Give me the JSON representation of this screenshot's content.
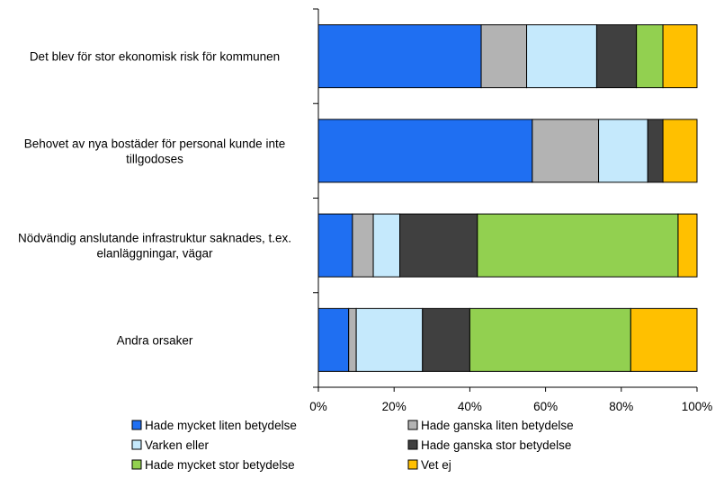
{
  "chart_data": {
    "type": "bar",
    "orientation": "horizontal",
    "stacked": true,
    "percent": true,
    "categories": [
      "Det blev för stor ekonomisk risk för kommunen",
      "Behovet av nya bostäder för personal kunde inte tillgodoses",
      "Nödvändig anslutande infrastruktur saknades, t.ex. elanläggningar, vägar",
      "Andra orsaker"
    ],
    "category_lines": [
      [
        "Det blev för stor ekonomisk risk för kommunen"
      ],
      [
        "Behovet av nya bostäder för personal kunde inte",
        "tillgodoses"
      ],
      [
        "Nödvändig anslutande infrastruktur saknades, t.ex.",
        "elanläggningar, vägar"
      ],
      [
        "Andra orsaker"
      ]
    ],
    "series": [
      {
        "name": "Hade mycket liten betydelse",
        "color": "#1f6ff2",
        "values": [
          43,
          56.5,
          9,
          8
        ]
      },
      {
        "name": "Hade ganska liten betydelse",
        "color": "#b3b3b3",
        "values": [
          12,
          17.5,
          5.5,
          2
        ]
      },
      {
        "name": "Varken eller",
        "color": "#c5e9fc",
        "values": [
          18.5,
          13,
          7,
          17.5
        ]
      },
      {
        "name": "Hade ganska stor betydelse",
        "color": "#404040",
        "values": [
          10.5,
          4,
          20.5,
          12.5
        ]
      },
      {
        "name": "Hade mycket stor betydelse",
        "color": "#92d050",
        "values": [
          7,
          0,
          53,
          42.5
        ]
      },
      {
        "name": "Vet ej",
        "color": "#ffc000",
        "values": [
          9,
          9,
          5,
          17.5
        ]
      }
    ],
    "x_ticks": [
      "0%",
      "20%",
      "40%",
      "60%",
      "80%",
      "100%"
    ],
    "xlim": [
      0,
      100
    ],
    "grid": false,
    "legend": "bottom"
  }
}
